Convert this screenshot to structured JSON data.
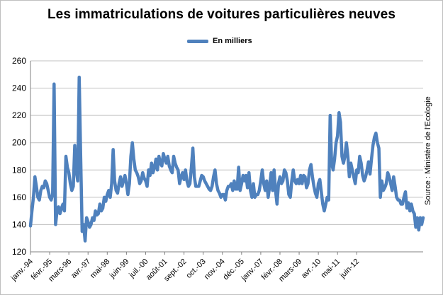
{
  "title": "Les immatriculations  de voitures particulières  neuves",
  "source": "Source : Ministère de l'Ecologie",
  "colors": {
    "line": "#4f81bd",
    "grid": "#c0c0c0",
    "axis": "#808080"
  },
  "chart_data": {
    "type": "line",
    "title": "Les immatriculations  de voitures particulières  neuves",
    "legend": "top-center",
    "grid": true,
    "ylim": [
      120,
      260
    ],
    "yticks": [
      120,
      140,
      160,
      180,
      200,
      220,
      240,
      260
    ],
    "x_tick_labels": [
      "janv.-94",
      "févr.-95",
      "mars-96",
      "avr.-97",
      "mai-98",
      "juin-99",
      "juil.-00",
      "août-01",
      "sept.-02",
      "oct.-03",
      "nov.-04",
      "déc.-05",
      "janv.-07",
      "févr.-08",
      "mars-09",
      "avr.-10",
      "mai-11",
      "juin-12"
    ],
    "x_start": "janv.-94",
    "x_tick_step_months": 13,
    "series": [
      {
        "name": "En milliers",
        "values": [
          139,
          150,
          160,
          175,
          168,
          160,
          158,
          165,
          168,
          167,
          172,
          170,
          165,
          160,
          158,
          162,
          243,
          140,
          150,
          153,
          148,
          152,
          155,
          150,
          190,
          182,
          178,
          170,
          165,
          168,
          198,
          180,
          172,
          248,
          190,
          135,
          140,
          128,
          145,
          142,
          138,
          140,
          145,
          143,
          150,
          147,
          148,
          155,
          150,
          152,
          160,
          157,
          162,
          165,
          160,
          170,
          195,
          172,
          165,
          163,
          170,
          175,
          168,
          172,
          176,
          170,
          162,
          170,
          190,
          200,
          188,
          180,
          178,
          175,
          170,
          172,
          178,
          174,
          172,
          168,
          180,
          176,
          185,
          178,
          182,
          188,
          180,
          190,
          185,
          183,
          192,
          188,
          185,
          190,
          183,
          180,
          178,
          190,
          185,
          182,
          180,
          170,
          175,
          178,
          173,
          180,
          172,
          168,
          170,
          182,
          196,
          175,
          168,
          168,
          168,
          172,
          176,
          175,
          172,
          170,
          168,
          166,
          165,
          168,
          175,
          180,
          170,
          165,
          163,
          160,
          162,
          162,
          158,
          165,
          168,
          168,
          170,
          165,
          172,
          166,
          166,
          182,
          165,
          170,
          176,
          172,
          176,
          167,
          178,
          165,
          160,
          170,
          160,
          162,
          162,
          165,
          172,
          180,
          170,
          165,
          172,
          160,
          168,
          178,
          165,
          180,
          165,
          155,
          170,
          175,
          170,
          172,
          180,
          178,
          172,
          162,
          160,
          172,
          180,
          172,
          170,
          173,
          170,
          176,
          170,
          176,
          175,
          167,
          170,
          180,
          184,
          175,
          168,
          163,
          160,
          170,
          173,
          164,
          155,
          150,
          155,
          160,
          158,
          220,
          185,
          180,
          188,
          200,
          205,
          222,
          215,
          190,
          185,
          190,
          200,
          190,
          175,
          185,
          180,
          175,
          170,
          180,
          178,
          190,
          185,
          176,
          172,
          175,
          180,
          186,
          177,
          188,
          198,
          204,
          207,
          200,
          196,
          160,
          172,
          165,
          167,
          170,
          178,
          175,
          170,
          165,
          175,
          168,
          160,
          158,
          158,
          155,
          155,
          160,
          164,
          152,
          156,
          150,
          155,
          150,
          148,
          138,
          145,
          136,
          145,
          140,
          145
        ]
      }
    ]
  }
}
